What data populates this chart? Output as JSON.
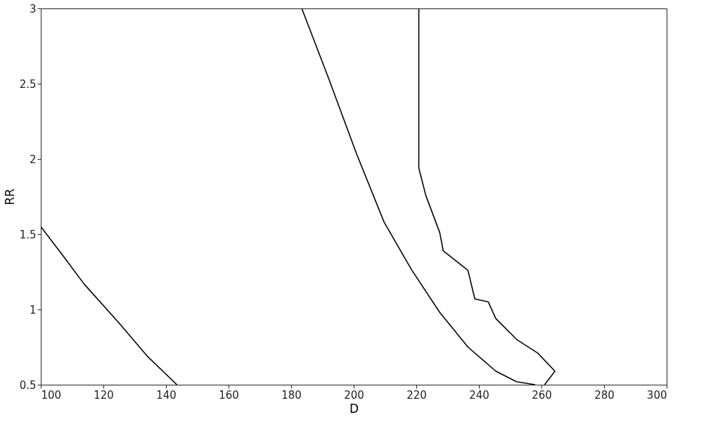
{
  "chart_data": {
    "type": "line",
    "xlabel": "D",
    "ylabel": "RR",
    "xlim": [
      100,
      300
    ],
    "ylim": [
      0.5,
      3
    ],
    "xticks": [
      100,
      120,
      140,
      160,
      180,
      200,
      220,
      240,
      260,
      280,
      300
    ],
    "yticks": [
      0.5,
      1,
      1.5,
      2,
      2.5,
      3
    ],
    "grid": false,
    "marker": "none",
    "line_style": "solid",
    "series": [
      {
        "color": "#000000",
        "x": [
          100,
          107,
          113.8,
          125,
          134,
          143.5
        ],
        "values": [
          1.55,
          1.36,
          1.17,
          0.91,
          0.69,
          0.5
        ]
      },
      {
        "color": "#000000",
        "x": [
          183.4,
          191.9,
          200.8,
          209.7,
          218.6,
          227.5,
          236.5,
          245.4,
          252,
          258
        ],
        "values": [
          3,
          2.54,
          2.04,
          1.58,
          1.26,
          0.98,
          0.75,
          0.59,
          0.52,
          0.5
        ]
      },
      {
        "color": "#000000",
        "x": [
          220.8,
          220.8,
          223,
          227.5,
          228.6,
          236.5,
          238.7,
          243,
          245.4,
          252.1,
          258.8,
          264.3,
          261
        ],
        "values": [
          3,
          1.94,
          1.76,
          1.51,
          1.39,
          1.26,
          1.07,
          1.05,
          0.94,
          0.8,
          0.71,
          0.59,
          0.5
        ]
      }
    ]
  }
}
